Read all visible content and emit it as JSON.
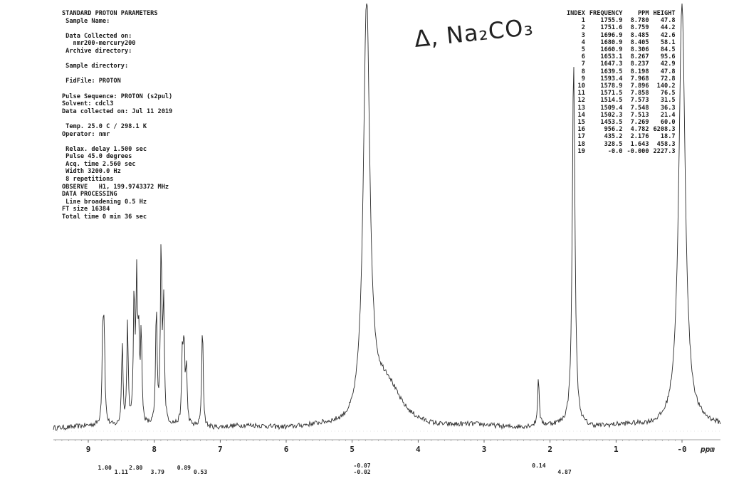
{
  "parameters": {
    "header": "STANDARD PROTON PARAMETERS",
    "lines": [
      " Sample Name:",
      "",
      " Data Collected on:",
      "   nmr200-mercury200",
      " Archive directory:",
      "",
      " Sample directory:",
      "",
      " FidFile: PROTON",
      "",
      "Pulse Sequence: PROTON (s2pul)",
      "Solvent: cdcl3",
      "Data collected on: Jul 11 2019",
      "",
      " Temp. 25.0 C / 298.1 K",
      "Operator: nmr",
      "",
      " Relax. delay 1.500 sec",
      " Pulse 45.0 degrees",
      " Acq. time 2.560 sec",
      " Width 3200.0 Hz",
      " 8 repetitions",
      "OBSERVE   H1, 199.9743372 MHz",
      "DATA PROCESSING",
      " Line broadening 0.5 Hz",
      "FT size 16384",
      "Total time 0 min 36 sec"
    ]
  },
  "annotation": "Δ, Na₂CO₃",
  "peak_table": {
    "headers": [
      "INDEX",
      "FREQUENCY",
      "PPM",
      "HEIGHT"
    ],
    "rows": [
      [
        "1",
        "1755.9",
        "8.780",
        "47.8"
      ],
      [
        "2",
        "1751.6",
        "8.759",
        "44.2"
      ],
      [
        "3",
        "1696.9",
        "8.485",
        "42.6"
      ],
      [
        "4",
        "1680.9",
        "8.405",
        "58.1"
      ],
      [
        "5",
        "1660.9",
        "8.306",
        "84.5"
      ],
      [
        "6",
        "1653.1",
        "8.267",
        "95.6"
      ],
      [
        "7",
        "1647.3",
        "8.237",
        "42.9"
      ],
      [
        "8",
        "1639.5",
        "8.198",
        "47.8"
      ],
      [
        "9",
        "1593.4",
        "7.968",
        "72.8"
      ],
      [
        "10",
        "1578.9",
        "7.896",
        "140.2"
      ],
      [
        "11",
        "1571.5",
        "7.858",
        "76.5"
      ],
      [
        "12",
        "1514.5",
        "7.573",
        "31.5"
      ],
      [
        "13",
        "1509.4",
        "7.548",
        "36.3"
      ],
      [
        "14",
        "1502.3",
        "7.513",
        "21.4"
      ],
      [
        "15",
        "1453.5",
        "7.269",
        "60.0"
      ],
      [
        "16",
        "956.2",
        "4.782",
        "6208.3"
      ],
      [
        "17",
        "435.2",
        "2.176",
        "18.7"
      ],
      [
        "18",
        "328.5",
        "1.643",
        "458.3"
      ],
      [
        "19",
        "-0.0",
        "-0.000",
        "2227.3"
      ]
    ]
  },
  "chart_data": {
    "type": "line",
    "title": "",
    "xlabel": "ppm",
    "ylabel": "",
    "x_reversed": true,
    "xlim": [
      10.0,
      -0.3
    ],
    "x_ticks": [
      9,
      8,
      7,
      6,
      5,
      4,
      3,
      2,
      1,
      0
    ],
    "x_tick_labels": [
      "9",
      "8",
      "7",
      "6",
      "5",
      "4",
      "3",
      "2",
      "1",
      "-0"
    ],
    "peaks": [
      {
        "ppm": 8.78,
        "height": 47.8
      },
      {
        "ppm": 8.759,
        "height": 44.2
      },
      {
        "ppm": 8.485,
        "height": 42.6
      },
      {
        "ppm": 8.405,
        "height": 58.1
      },
      {
        "ppm": 8.306,
        "height": 84.5
      },
      {
        "ppm": 8.267,
        "height": 95.6
      },
      {
        "ppm": 8.237,
        "height": 42.9
      },
      {
        "ppm": 8.198,
        "height": 47.8
      },
      {
        "ppm": 7.968,
        "height": 72.8
      },
      {
        "ppm": 7.896,
        "height": 140.2
      },
      {
        "ppm": 7.858,
        "height": 76.5
      },
      {
        "ppm": 7.573,
        "height": 31.5
      },
      {
        "ppm": 7.548,
        "height": 36.3
      },
      {
        "ppm": 7.513,
        "height": 21.4
      },
      {
        "ppm": 7.269,
        "height": 60.0
      },
      {
        "ppm": 4.782,
        "height": 6208.3
      },
      {
        "ppm": 2.176,
        "height": 18.7
      },
      {
        "ppm": 1.643,
        "height": 458.3
      },
      {
        "ppm": -0.0,
        "height": 2227.3
      }
    ],
    "integrals": [
      {
        "ppm": 8.75,
        "value": "1.00"
      },
      {
        "ppm": 8.5,
        "value": "1.11"
      },
      {
        "ppm": 8.28,
        "value": "2.80"
      },
      {
        "ppm": 7.95,
        "value": "3.79"
      },
      {
        "ppm": 7.55,
        "value": "0.89"
      },
      {
        "ppm": 7.3,
        "value": "0.53"
      },
      {
        "ppm": 4.85,
        "value": "-0.07"
      },
      {
        "ppm": 4.85,
        "value": "-0.02"
      },
      {
        "ppm": 2.17,
        "value": "0.14"
      },
      {
        "ppm": 1.64,
        "value": "4.87"
      }
    ]
  }
}
